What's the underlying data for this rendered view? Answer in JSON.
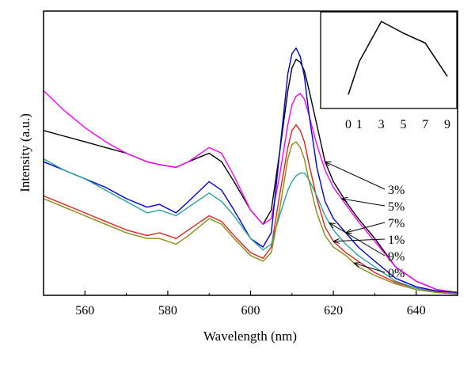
{
  "chart_data": {
    "type": "line",
    "xlabel": "Wavelength (nm)",
    "ylabel": "Intensity (a.u.)",
    "xlim": [
      550,
      650
    ],
    "ylim": [
      0,
      1
    ],
    "x_ticks": [
      560,
      580,
      600,
      620,
      640
    ],
    "y_ticks_shown": false,
    "grid": false,
    "x": [
      550,
      555,
      560,
      565,
      570,
      575,
      578,
      582,
      585,
      590,
      593,
      596,
      600,
      603,
      605,
      607,
      609,
      610,
      611,
      612,
      613,
      614,
      616,
      618,
      620,
      623,
      626,
      630,
      635,
      640,
      645,
      650
    ],
    "series": [
      {
        "name": "3%",
        "color": "#000000",
        "values": [
          0.58,
          0.56,
          0.54,
          0.52,
          0.5,
          0.47,
          0.46,
          0.45,
          0.47,
          0.5,
          0.47,
          0.4,
          0.3,
          0.25,
          0.3,
          0.5,
          0.72,
          0.8,
          0.83,
          0.82,
          0.79,
          0.73,
          0.6,
          0.47,
          0.4,
          0.33,
          0.27,
          0.2,
          0.1,
          0.05,
          0.02,
          0.01
        ]
      },
      {
        "name": "5%",
        "color": "#ff00ff",
        "values": [
          0.72,
          0.65,
          0.59,
          0.54,
          0.5,
          0.47,
          0.46,
          0.45,
          0.47,
          0.52,
          0.5,
          0.42,
          0.3,
          0.25,
          0.27,
          0.42,
          0.6,
          0.67,
          0.7,
          0.71,
          0.69,
          0.64,
          0.53,
          0.44,
          0.38,
          0.32,
          0.26,
          0.19,
          0.1,
          0.05,
          0.02,
          0.01
        ]
      },
      {
        "name": "7%",
        "color": "#0000cc",
        "values": [
          0.47,
          0.44,
          0.41,
          0.38,
          0.34,
          0.31,
          0.32,
          0.29,
          0.33,
          0.4,
          0.37,
          0.3,
          0.2,
          0.17,
          0.22,
          0.5,
          0.78,
          0.85,
          0.87,
          0.84,
          0.77,
          0.65,
          0.45,
          0.33,
          0.27,
          0.22,
          0.17,
          0.12,
          0.06,
          0.03,
          0.015,
          0.01
        ]
      },
      {
        "name": "1%",
        "color": "#e32020",
        "values": [
          0.35,
          0.32,
          0.29,
          0.26,
          0.23,
          0.21,
          0.22,
          0.2,
          0.23,
          0.28,
          0.26,
          0.21,
          0.15,
          0.13,
          0.17,
          0.35,
          0.52,
          0.58,
          0.6,
          0.58,
          0.54,
          0.47,
          0.34,
          0.24,
          0.19,
          0.15,
          0.12,
          0.08,
          0.045,
          0.025,
          0.012,
          0.005
        ]
      },
      {
        "name": "9%",
        "color": "#2aa0a0",
        "values": [
          0.48,
          0.44,
          0.41,
          0.37,
          0.33,
          0.29,
          0.3,
          0.28,
          0.31,
          0.36,
          0.33,
          0.28,
          0.2,
          0.16,
          0.18,
          0.28,
          0.37,
          0.4,
          0.42,
          0.43,
          0.43,
          0.41,
          0.35,
          0.28,
          0.23,
          0.18,
          0.14,
          0.1,
          0.05,
          0.025,
          0.01,
          0.005
        ]
      },
      {
        "name": "0%",
        "color": "#8a8a10",
        "values": [
          0.34,
          0.31,
          0.28,
          0.25,
          0.22,
          0.2,
          0.2,
          0.18,
          0.21,
          0.27,
          0.25,
          0.2,
          0.14,
          0.12,
          0.15,
          0.3,
          0.48,
          0.53,
          0.54,
          0.52,
          0.48,
          0.41,
          0.29,
          0.21,
          0.17,
          0.14,
          0.1,
          0.07,
          0.04,
          0.02,
          0.01,
          0.005
        ]
      }
    ],
    "annotations": [
      {
        "text": "3%",
        "arrow_to_x": 618
      },
      {
        "text": "5%",
        "arrow_to_x": 622
      },
      {
        "text": "7%",
        "arrow_to_x": 623
      },
      {
        "text": "1%",
        "arrow_to_x": 620
      },
      {
        "text": "9%",
        "arrow_to_x": 619
      },
      {
        "text": "0%",
        "arrow_to_x": 625
      }
    ],
    "inset": {
      "type": "line",
      "x": [
        0,
        1,
        3,
        5,
        7,
        9
      ],
      "values": [
        0.1,
        0.5,
        0.98,
        0.84,
        0.72,
        0.32
      ],
      "x_ticks": [
        "0",
        "1",
        "3",
        "5",
        "7",
        "9"
      ],
      "color": "#000000"
    }
  }
}
